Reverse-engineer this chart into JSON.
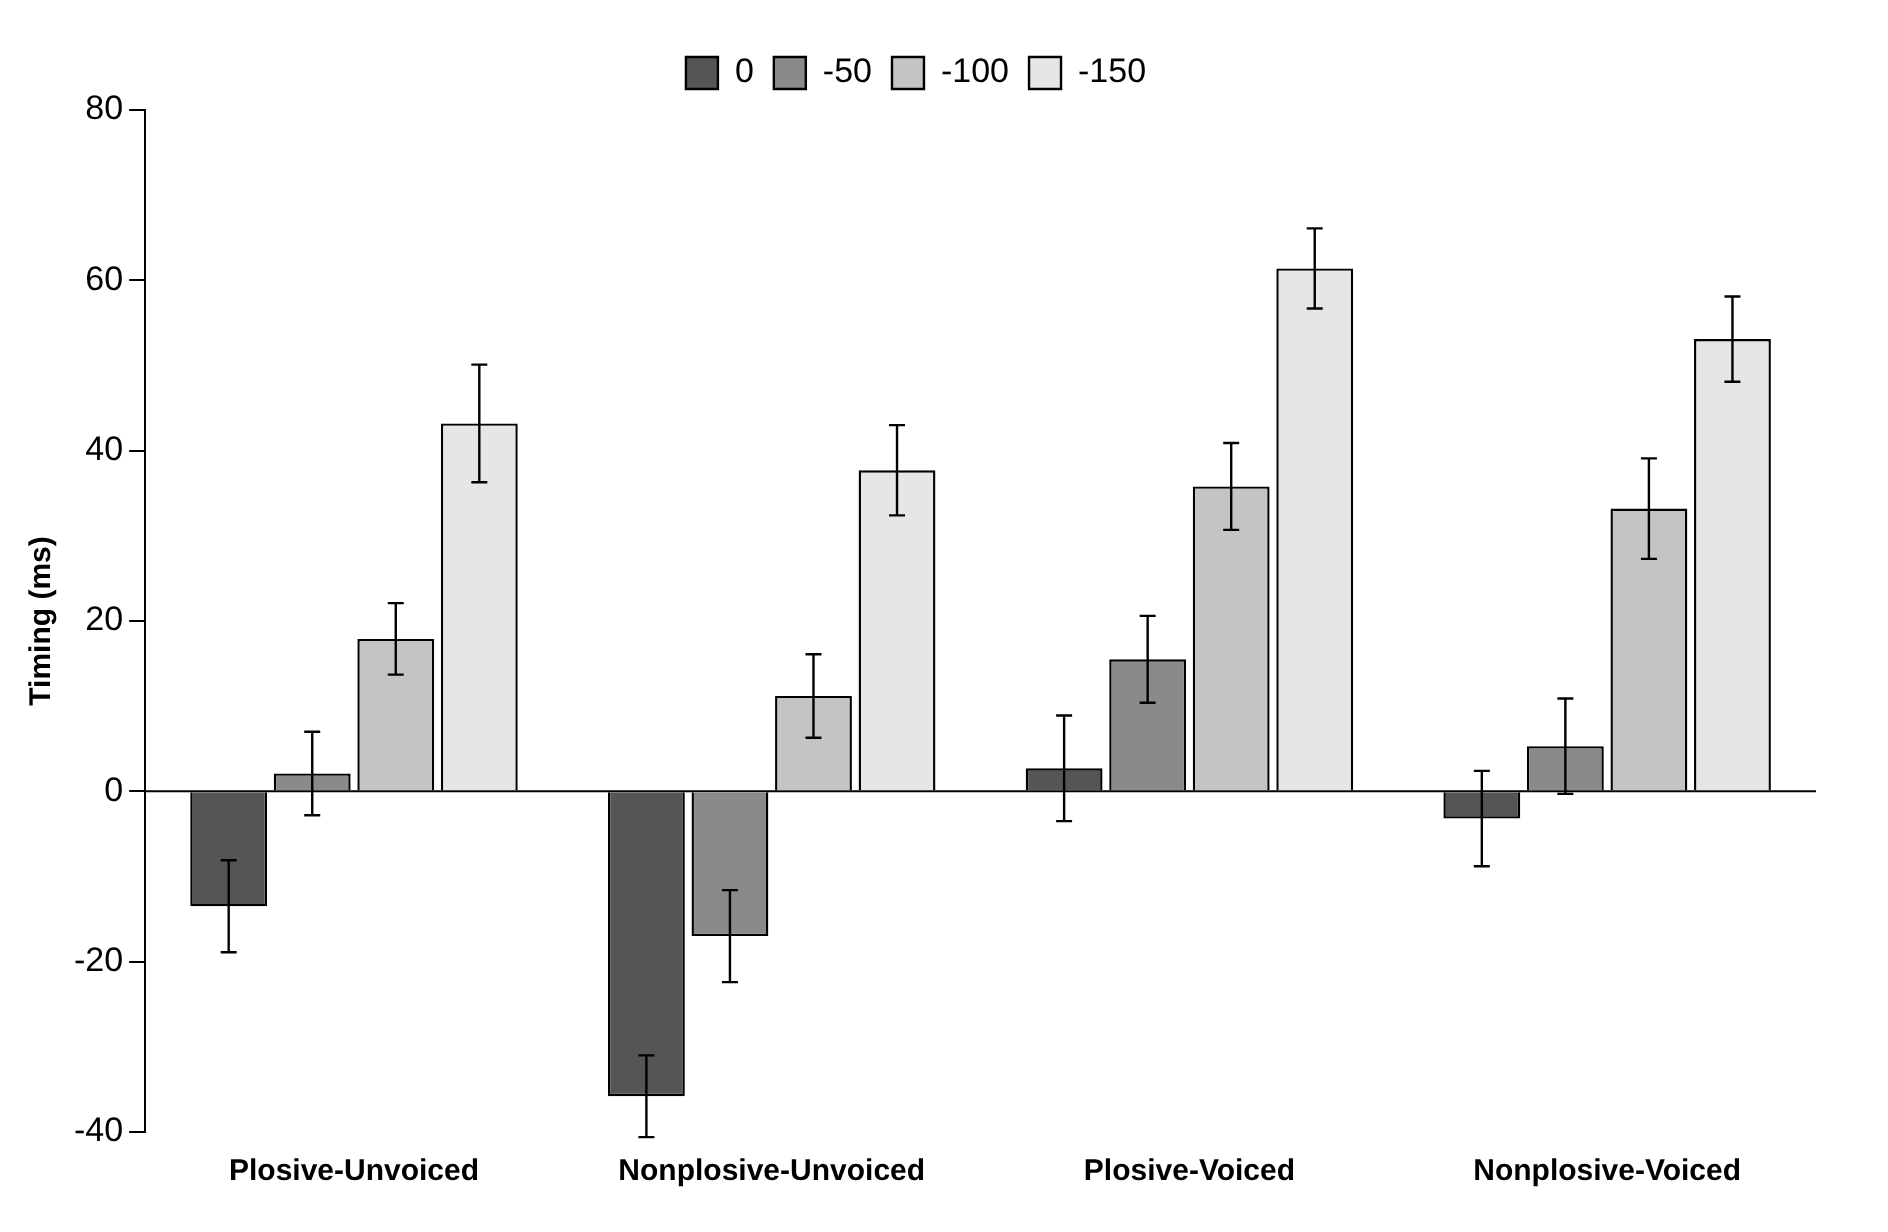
{
  "chart_data": {
    "type": "bar",
    "ylabel": "Timing (ms)",
    "categories": [
      "Plosive-Unvoiced",
      "Nonplosive-Unvoiced",
      "Plosive-Voiced",
      "Nonplosive-Voiced"
    ],
    "series": [
      {
        "name": "0",
        "color": "#555555",
        "values": [
          -13.5,
          -35.8,
          2.7,
          -3.2
        ],
        "errors": [
          5.4,
          4.8,
          6.2,
          5.6
        ]
      },
      {
        "name": "-50",
        "color": "#8a8a8a",
        "values": [
          2.1,
          -17,
          15.5,
          5.3
        ],
        "errors": [
          4.9,
          5.4,
          5.1,
          5.6
        ]
      },
      {
        "name": "-100",
        "color": "#c4c4c4",
        "values": [
          17.9,
          11.2,
          35.8,
          33.2
        ],
        "errors": [
          4.2,
          4.9,
          5.1,
          5.9
        ]
      },
      {
        "name": "-150",
        "color": "#e6e6e6",
        "values": [
          43.2,
          37.7,
          61.4,
          53.1
        ],
        "errors": [
          6.9,
          5.3,
          4.7,
          5
        ]
      }
    ],
    "ylim": [
      -40,
      80
    ],
    "yticks": [
      -40,
      -20,
      0,
      20,
      40,
      60,
      80
    ],
    "grid": false,
    "legend": "top",
    "ref_lines": [
      {
        "axis": "y",
        "value": 0,
        "color": "#000000"
      }
    ]
  }
}
